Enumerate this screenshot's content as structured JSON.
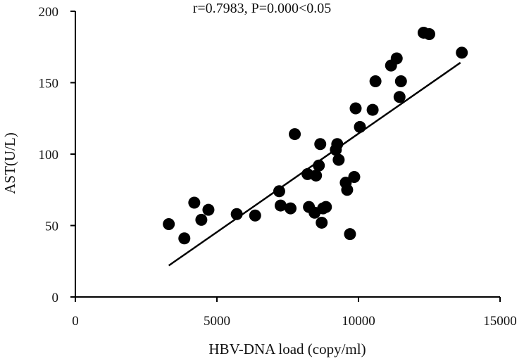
{
  "chart_data": {
    "type": "scatter",
    "annotation": "r=0.7983, P=0.000<0.05",
    "xlabel": "HBV-DNA load (copy/ml)",
    "ylabel": "AST(U/L)",
    "xlim": [
      0,
      15000
    ],
    "ylim": [
      0,
      200
    ],
    "x_ticks": [
      0,
      5000,
      10000,
      15000
    ],
    "y_ticks": [
      0,
      50,
      100,
      150,
      200
    ],
    "grid": false,
    "colors": {
      "points": "#000000",
      "axes": "#000000",
      "fit_line": "#000000"
    },
    "fit_line": {
      "x": [
        3300,
        13600
      ],
      "y": [
        22,
        164
      ]
    },
    "points": [
      {
        "x": 3300,
        "y": 51
      },
      {
        "x": 3850,
        "y": 41
      },
      {
        "x": 4200,
        "y": 66
      },
      {
        "x": 4450,
        "y": 54
      },
      {
        "x": 4700,
        "y": 61
      },
      {
        "x": 5700,
        "y": 58
      },
      {
        "x": 6350,
        "y": 57
      },
      {
        "x": 7200,
        "y": 74
      },
      {
        "x": 7250,
        "y": 64
      },
      {
        "x": 7600,
        "y": 62
      },
      {
        "x": 7750,
        "y": 114
      },
      {
        "x": 8200,
        "y": 86
      },
      {
        "x": 8250,
        "y": 63
      },
      {
        "x": 8450,
        "y": 59
      },
      {
        "x": 8500,
        "y": 85
      },
      {
        "x": 8600,
        "y": 92
      },
      {
        "x": 8650,
        "y": 107
      },
      {
        "x": 8700,
        "y": 52
      },
      {
        "x": 8750,
        "y": 62
      },
      {
        "x": 8850,
        "y": 63
      },
      {
        "x": 9200,
        "y": 103
      },
      {
        "x": 9250,
        "y": 107
      },
      {
        "x": 9300,
        "y": 96
      },
      {
        "x": 9550,
        "y": 80
      },
      {
        "x": 9600,
        "y": 75
      },
      {
        "x": 9700,
        "y": 44
      },
      {
        "x": 9850,
        "y": 84
      },
      {
        "x": 9900,
        "y": 132
      },
      {
        "x": 10050,
        "y": 119
      },
      {
        "x": 10500,
        "y": 131
      },
      {
        "x": 10600,
        "y": 151
      },
      {
        "x": 11150,
        "y": 162
      },
      {
        "x": 11350,
        "y": 167
      },
      {
        "x": 11450,
        "y": 140
      },
      {
        "x": 11500,
        "y": 151
      },
      {
        "x": 12300,
        "y": 185
      },
      {
        "x": 12500,
        "y": 184
      },
      {
        "x": 13650,
        "y": 171
      }
    ]
  }
}
